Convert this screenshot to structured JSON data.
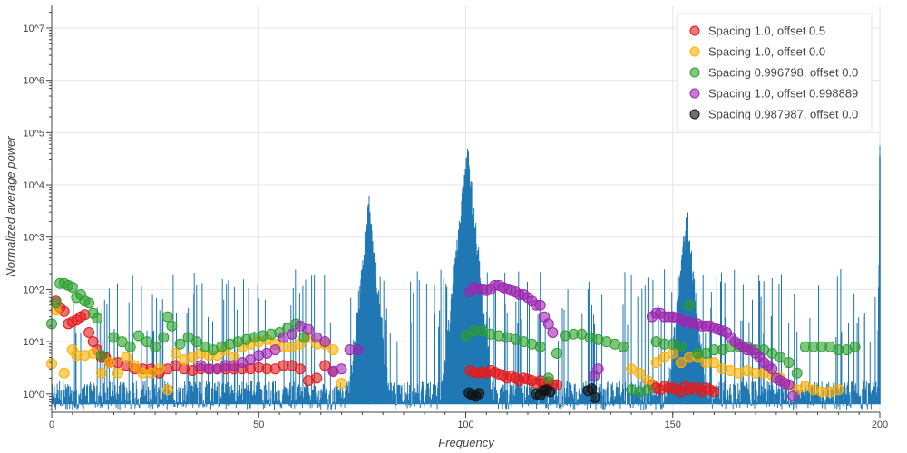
{
  "chart_data": {
    "type": "scatter",
    "xlabel": "Frequency",
    "ylabel": "Normalized average power",
    "xlim": [
      0,
      200
    ],
    "ylim_log10": [
      -0.35,
      7.45
    ],
    "y_scale": "log",
    "x_ticks": [
      0,
      50,
      100,
      150,
      200
    ],
    "y_ticks": [
      {
        "exp": 0,
        "label": "10^0"
      },
      {
        "exp": 1,
        "label": "10^1"
      },
      {
        "exp": 2,
        "label": "10^2"
      },
      {
        "exp": 3,
        "label": "10^3"
      },
      {
        "exp": 4,
        "label": "10^4"
      },
      {
        "exp": 5,
        "label": "10^5"
      },
      {
        "exp": 6,
        "label": "10^6"
      },
      {
        "exp": 7,
        "label": "10^7"
      }
    ],
    "grid": true,
    "legend_position": "top-right",
    "spectrum": {
      "color": "#1f77b4",
      "baseline": 1.0,
      "peaks": [
        {
          "x": 76.6,
          "y": 3500
        },
        {
          "x": 100.4,
          "y": 35000
        },
        {
          "x": 153.4,
          "y": 2200
        },
        {
          "x": 200.0,
          "y": 35000
        }
      ]
    },
    "series": [
      {
        "name": "Spacing 1.0, offset 0.5",
        "color": "#e41a1c",
        "points": [
          [
            1,
            60
          ],
          [
            2,
            45
          ],
          [
            3,
            38
          ],
          [
            4,
            22
          ],
          [
            5,
            24
          ],
          [
            6,
            26
          ],
          [
            7,
            30
          ],
          [
            8,
            33
          ],
          [
            9,
            15
          ],
          [
            10,
            10
          ],
          [
            11,
            7
          ],
          [
            12,
            5
          ],
          [
            13,
            5
          ],
          [
            14,
            4
          ],
          [
            16,
            4
          ],
          [
            18,
            3.5
          ],
          [
            20,
            3
          ],
          [
            22,
            3
          ],
          [
            24,
            3
          ],
          [
            26,
            2.5
          ],
          [
            28,
            3
          ],
          [
            30,
            3.5
          ],
          [
            32,
            3
          ],
          [
            34,
            2.8
          ],
          [
            36,
            3
          ],
          [
            38,
            3
          ],
          [
            40,
            3
          ],
          [
            42,
            3
          ],
          [
            44,
            3
          ],
          [
            46,
            3
          ],
          [
            48,
            3
          ],
          [
            50,
            3.2
          ],
          [
            52,
            3
          ],
          [
            54,
            3
          ],
          [
            56,
            3.5
          ],
          [
            58,
            3.5
          ],
          [
            60,
            3
          ],
          [
            62,
            1.8
          ],
          [
            64,
            2
          ],
          [
            66,
            3.5
          ],
          [
            68,
            2.7
          ],
          [
            101,
            2.8
          ],
          [
            102,
            2.6
          ],
          [
            103,
            2.5
          ],
          [
            104,
            2.6
          ],
          [
            105,
            2.5
          ],
          [
            106,
            2.8
          ],
          [
            107,
            2.6
          ],
          [
            108,
            2.4
          ],
          [
            109,
            2.3
          ],
          [
            110,
            2
          ],
          [
            111,
            2.2
          ],
          [
            112,
            2
          ],
          [
            113,
            1.8
          ],
          [
            114,
            2
          ],
          [
            115,
            1.9
          ],
          [
            116,
            1.8
          ],
          [
            117,
            1.6
          ],
          [
            118,
            1.8
          ],
          [
            119,
            1.6
          ],
          [
            120,
            1.7
          ],
          [
            121,
            1.5
          ],
          [
            122,
            1.5
          ],
          [
            145,
            1.5
          ],
          [
            146,
            1.3
          ],
          [
            147,
            1.2
          ],
          [
            148,
            1.4
          ],
          [
            149,
            1.3
          ],
          [
            150,
            1.3
          ],
          [
            151,
            1.2
          ],
          [
            152,
            1.1
          ],
          [
            153,
            1.4
          ],
          [
            154,
            1.2
          ],
          [
            155,
            1.3
          ],
          [
            156,
            1.3
          ],
          [
            157,
            1.1
          ],
          [
            158,
            1.3
          ],
          [
            159,
            1.2
          ],
          [
            160,
            1.1
          ]
        ]
      },
      {
        "name": "Spacing 1.0, offset 0.0",
        "color": "#ffb000",
        "points": [
          [
            0,
            3.8
          ],
          [
            1,
            40
          ],
          [
            3,
            2.5
          ],
          [
            5,
            7
          ],
          [
            6,
            5.5
          ],
          [
            8,
            5.5
          ],
          [
            10,
            6
          ],
          [
            12,
            2.5
          ],
          [
            14,
            4
          ],
          [
            16,
            2.5
          ],
          [
            18,
            5
          ],
          [
            20,
            3.5
          ],
          [
            22,
            2.5
          ],
          [
            24,
            2.5
          ],
          [
            26,
            3
          ],
          [
            28,
            1.2
          ],
          [
            30,
            6
          ],
          [
            32,
            4.5
          ],
          [
            34,
            5
          ],
          [
            36,
            6
          ],
          [
            38,
            5.5
          ],
          [
            40,
            5.5
          ],
          [
            42,
            7
          ],
          [
            44,
            5
          ],
          [
            46,
            8
          ],
          [
            48,
            9
          ],
          [
            50,
            10
          ],
          [
            52,
            11
          ],
          [
            54,
            9
          ],
          [
            56,
            8
          ],
          [
            58,
            8
          ],
          [
            60,
            9
          ],
          [
            62,
            12
          ],
          [
            64,
            9
          ],
          [
            66,
            9
          ],
          [
            68,
            7
          ],
          [
            70,
            1.6
          ],
          [
            140,
            3
          ],
          [
            142,
            2.5
          ],
          [
            144,
            1.8
          ],
          [
            146,
            4
          ],
          [
            148,
            5
          ],
          [
            150,
            6
          ],
          [
            152,
            4
          ],
          [
            154,
            5
          ],
          [
            156,
            5
          ],
          [
            158,
            4
          ],
          [
            160,
            4
          ],
          [
            162,
            3
          ],
          [
            164,
            2.8
          ],
          [
            166,
            2.5
          ],
          [
            168,
            2.8
          ],
          [
            170,
            2.5
          ],
          [
            172,
            2.5
          ],
          [
            174,
            2.3
          ],
          [
            176,
            2
          ],
          [
            178,
            1.5
          ],
          [
            180,
            1.2
          ],
          [
            182,
            1.4
          ],
          [
            184,
            1.2
          ],
          [
            186,
            1.1
          ],
          [
            188,
            1.1
          ],
          [
            190,
            1.2
          ]
        ]
      },
      {
        "name": "Spacing 0.996798, offset 0.0",
        "color": "#2ca02c",
        "points": [
          [
            0,
            22
          ],
          [
            1,
            55
          ],
          [
            2,
            130
          ],
          [
            3,
            130
          ],
          [
            4,
            120
          ],
          [
            5,
            110
          ],
          [
            6,
            70
          ],
          [
            7,
            80
          ],
          [
            8,
            60
          ],
          [
            9,
            55
          ],
          [
            10,
            35
          ],
          [
            11,
            28
          ],
          [
            12,
            5.5
          ],
          [
            15,
            12
          ],
          [
            17,
            10
          ],
          [
            19,
            8
          ],
          [
            21,
            13
          ],
          [
            23,
            10
          ],
          [
            25,
            8
          ],
          [
            27,
            12
          ],
          [
            28,
            30
          ],
          [
            29,
            20
          ],
          [
            31,
            9
          ],
          [
            33,
            12
          ],
          [
            35,
            10
          ],
          [
            37,
            8
          ],
          [
            39,
            7
          ],
          [
            41,
            8
          ],
          [
            43,
            9
          ],
          [
            45,
            10
          ],
          [
            47,
            11
          ],
          [
            49,
            12
          ],
          [
            51,
            13
          ],
          [
            53,
            14
          ],
          [
            55,
            15
          ],
          [
            57,
            18
          ],
          [
            59,
            22
          ],
          [
            61,
            12
          ],
          [
            100,
            13
          ],
          [
            102,
            16
          ],
          [
            104,
            16
          ],
          [
            106,
            14
          ],
          [
            108,
            13
          ],
          [
            110,
            12
          ],
          [
            112,
            11
          ],
          [
            114,
            10
          ],
          [
            116,
            9
          ],
          [
            118,
            8
          ],
          [
            120,
            2
          ],
          [
            122,
            6
          ],
          [
            124,
            13
          ],
          [
            126,
            14
          ],
          [
            128,
            14
          ],
          [
            130,
            12
          ],
          [
            132,
            11
          ],
          [
            134,
            10
          ],
          [
            136,
            9
          ],
          [
            138,
            8
          ],
          [
            140,
            1.2
          ],
          [
            142,
            1.1
          ],
          [
            144,
            1.2
          ],
          [
            146,
            10
          ],
          [
            148,
            9
          ],
          [
            150,
            9
          ],
          [
            152,
            8
          ],
          [
            154,
            50
          ],
          [
            156,
            6
          ],
          [
            158,
            6
          ],
          [
            160,
            7
          ],
          [
            162,
            7
          ],
          [
            164,
            8
          ],
          [
            166,
            8
          ],
          [
            168,
            8
          ],
          [
            170,
            7
          ],
          [
            172,
            7
          ],
          [
            174,
            6
          ],
          [
            176,
            5
          ],
          [
            178,
            4
          ],
          [
            180,
            2.5
          ],
          [
            182,
            8
          ],
          [
            184,
            8
          ],
          [
            186,
            8
          ],
          [
            188,
            8
          ],
          [
            190,
            7
          ],
          [
            192,
            7
          ],
          [
            194,
            8
          ]
        ]
      },
      {
        "name": "Spacing 1.0, offset 0.998889",
        "color": "#9c27b0",
        "points": [
          [
            36,
            3.5
          ],
          [
            38,
            3
          ],
          [
            40,
            3
          ],
          [
            42,
            3.5
          ],
          [
            44,
            3.5
          ],
          [
            46,
            4
          ],
          [
            48,
            4.5
          ],
          [
            50,
            5.5
          ],
          [
            52,
            6
          ],
          [
            54,
            7
          ],
          [
            56,
            12
          ],
          [
            58,
            14
          ],
          [
            60,
            20
          ],
          [
            62,
            17
          ],
          [
            64,
            12
          ],
          [
            66,
            10
          ],
          [
            68,
            2.7
          ],
          [
            70,
            3
          ],
          [
            72,
            7
          ],
          [
            74,
            7
          ],
          [
            101,
            90
          ],
          [
            102,
            110
          ],
          [
            103,
            100
          ],
          [
            104,
            100
          ],
          [
            105,
            95
          ],
          [
            106,
            100
          ],
          [
            107,
            120
          ],
          [
            108,
            120
          ],
          [
            109,
            110
          ],
          [
            110,
            100
          ],
          [
            111,
            95
          ],
          [
            112,
            90
          ],
          [
            113,
            80
          ],
          [
            114,
            80
          ],
          [
            115,
            70
          ],
          [
            116,
            60
          ],
          [
            117,
            50
          ],
          [
            118,
            50
          ],
          [
            119,
            30
          ],
          [
            120,
            22
          ],
          [
            121,
            15
          ],
          [
            145,
            30
          ],
          [
            146,
            35
          ],
          [
            147,
            35
          ],
          [
            148,
            30
          ],
          [
            149,
            30
          ],
          [
            150,
            30
          ],
          [
            151,
            28
          ],
          [
            152,
            26
          ],
          [
            153,
            24
          ],
          [
            154,
            24
          ],
          [
            155,
            22
          ],
          [
            156,
            22
          ],
          [
            157,
            20
          ],
          [
            158,
            20
          ],
          [
            159,
            20
          ],
          [
            160,
            18
          ],
          [
            161,
            17
          ],
          [
            162,
            16
          ],
          [
            163,
            15
          ],
          [
            164,
            12
          ],
          [
            165,
            10
          ],
          [
            166,
            9
          ],
          [
            167,
            8
          ],
          [
            168,
            7
          ],
          [
            169,
            7
          ],
          [
            170,
            6
          ],
          [
            171,
            5
          ],
          [
            172,
            4
          ],
          [
            173,
            3.5
          ],
          [
            174,
            3
          ],
          [
            175,
            2
          ],
          [
            176,
            1.8
          ],
          [
            177,
            1.6
          ],
          [
            178,
            1.5
          ],
          [
            179,
            0.9
          ],
          [
            131,
            2.2
          ],
          [
            132,
            3
          ]
        ]
      },
      {
        "name": "Spacing 0.987987, offset 0.0",
        "color": "#111111",
        "points": [
          [
            100.8,
            1.05
          ],
          [
            101.6,
            0.95
          ],
          [
            102.4,
            0.9
          ],
          [
            103.2,
            1.02
          ],
          [
            117,
            1.0
          ],
          [
            118,
            0.95
          ],
          [
            118.8,
            1.15
          ],
          [
            119.6,
            1.2
          ],
          [
            120.4,
            1.1
          ],
          [
            129.6,
            1.15
          ],
          [
            130.4,
            1.25
          ],
          [
            131.2,
            0.85
          ]
        ]
      }
    ]
  }
}
